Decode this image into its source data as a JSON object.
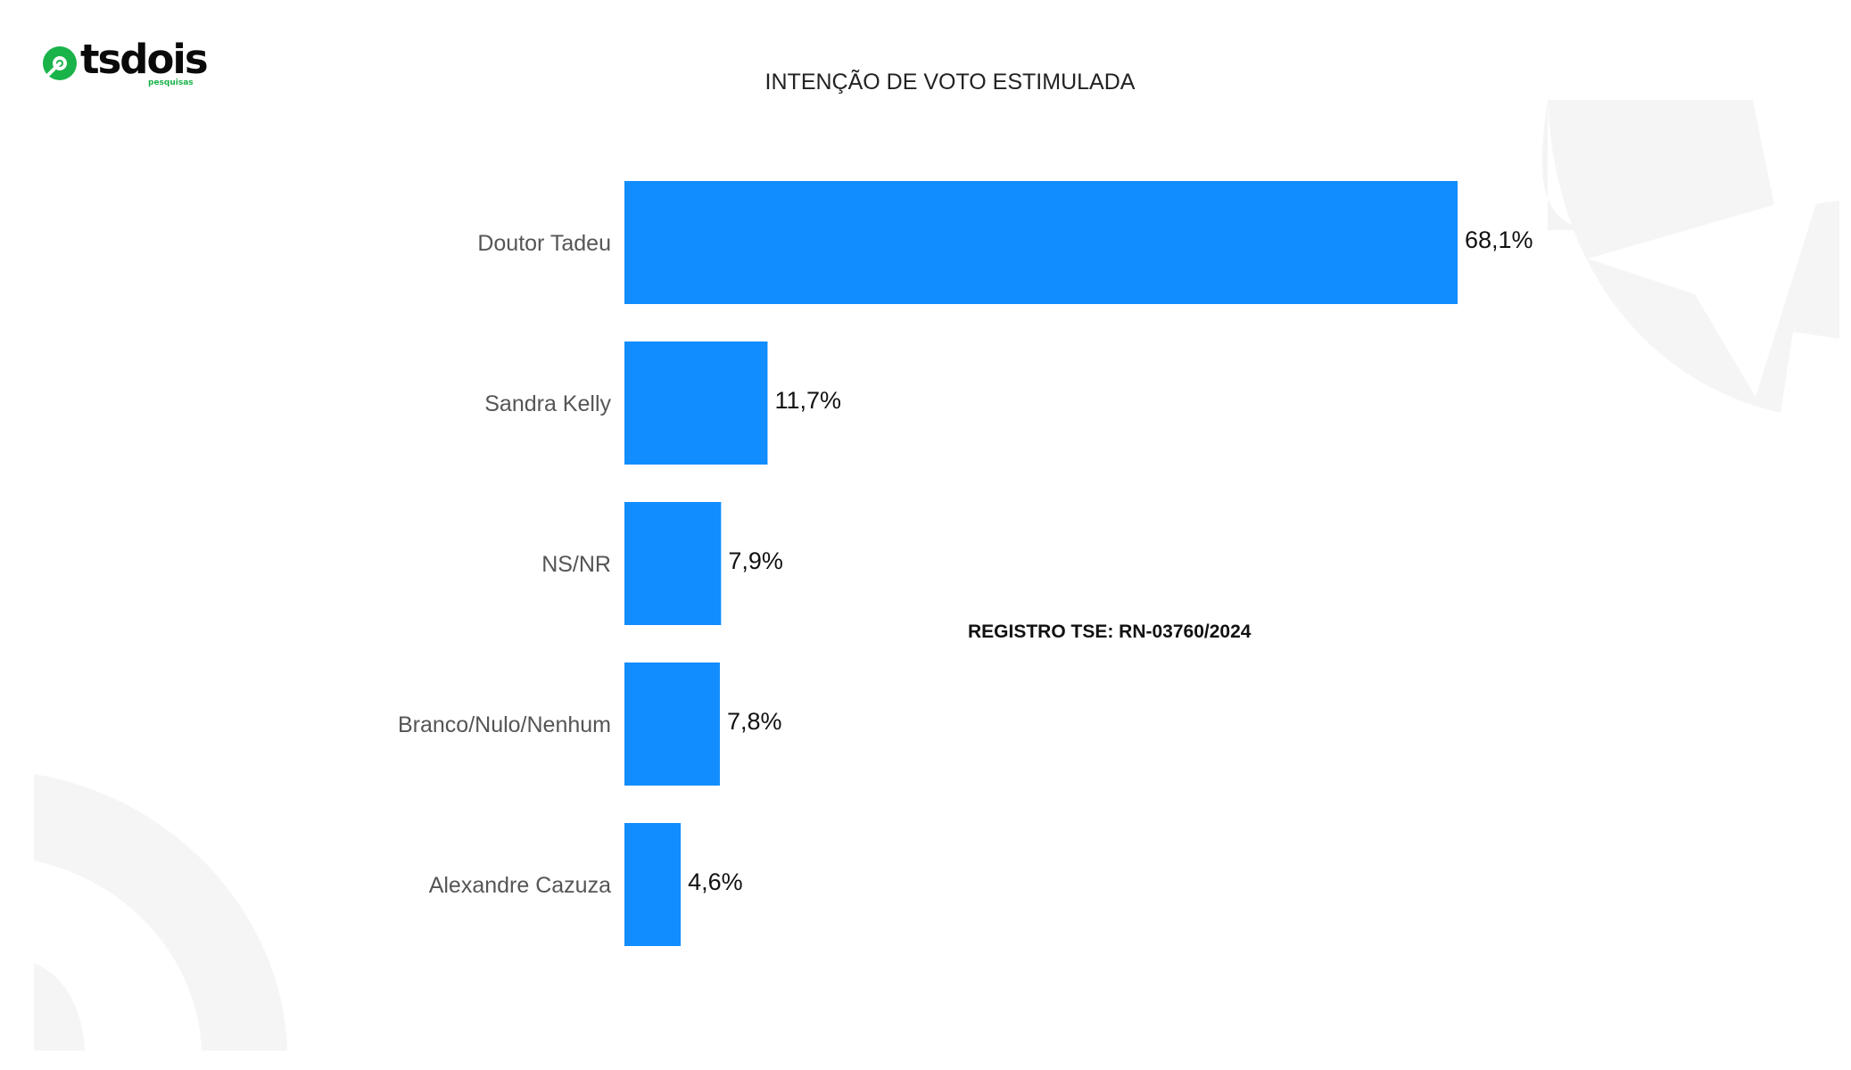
{
  "brand": {
    "name": "tsdois",
    "tagline": "pesquisas",
    "accent": "#19b34a"
  },
  "footnote": "REGISTRO TSE: RN-03760/2024",
  "chart_data": {
    "type": "bar",
    "orientation": "horizontal",
    "title": "INTENÇÃO DE VOTO ESTIMULADA",
    "categories": [
      "Doutor Tadeu",
      "Sandra Kelly",
      "NS/NR",
      "Branco/Nulo/Nenhum",
      "Alexandre Cazuza"
    ],
    "values": [
      68.1,
      11.7,
      7.9,
      7.8,
      4.6
    ],
    "value_labels": [
      "68,1%",
      "11,7%",
      "7,9%",
      "7,8%",
      "4,6%"
    ],
    "unit": "%",
    "xlim": [
      0,
      68.1
    ],
    "bar_color": "#118dff",
    "grid": false,
    "legend": "none"
  }
}
